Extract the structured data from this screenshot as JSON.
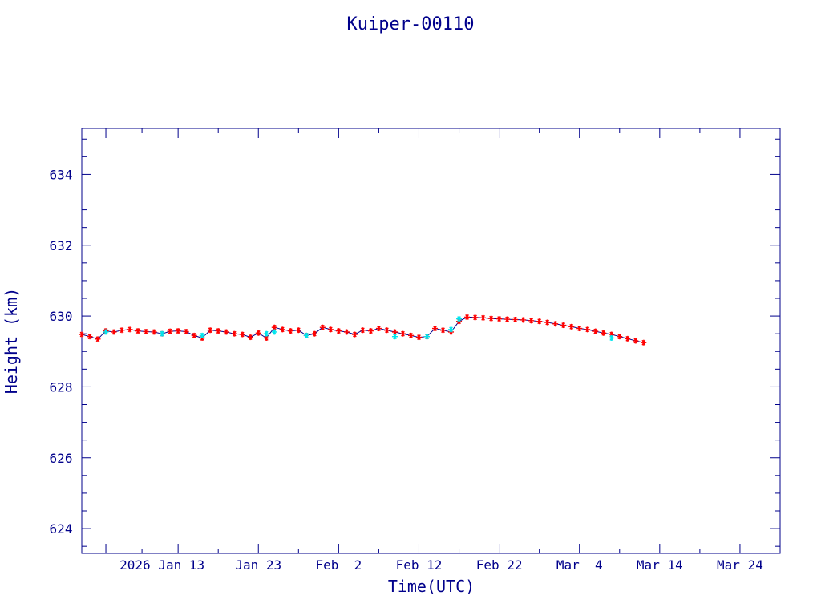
{
  "chart_data": {
    "type": "scatter",
    "title": "Kuiper-00110",
    "xlabel": "Time(UTC)",
    "ylabel": "Height (km)",
    "xlim": [
      "2026-01-01",
      "2026-03-29"
    ],
    "ylim": [
      623.3,
      635.3
    ],
    "x_ticks": [
      "2026-01-04",
      "2026-01-13",
      "2026-01-23",
      "2026-02-02",
      "2026-02-12",
      "2026-02-22",
      "2026-03-04",
      "2026-03-14",
      "2026-03-24"
    ],
    "x_tick_labels": [
      "2026 Jan 13",
      "Jan 23",
      "Feb  2",
      "Feb 12",
      "Feb 22",
      "Mar  4",
      "Mar 14",
      "Mar 24"
    ],
    "x_tick_label_dates": [
      "2026-01-13",
      "2026-01-23",
      "2026-02-02",
      "2026-02-12",
      "2026-02-22",
      "2026-03-04",
      "2026-03-14",
      "2026-03-24"
    ],
    "y_ticks": [
      624,
      626,
      628,
      630,
      632,
      634
    ],
    "y_tick_labels": [
      "624",
      "626",
      "628",
      "630",
      "632",
      "634"
    ],
    "grid": false,
    "legend": "none",
    "colors": {
      "axis": "#00008b",
      "line": "#00008b",
      "marker_primary": "#ff0000",
      "marker_secondary": "#00e5ee"
    },
    "series": [
      {
        "marker": "star",
        "color": "#ff0000",
        "x": [
          "2026-01-01",
          "2026-01-02",
          "2026-01-03",
          "2026-01-04",
          "2026-01-05",
          "2026-01-06",
          "2026-01-07",
          "2026-01-08",
          "2026-01-09",
          "2026-01-10",
          "2026-01-11",
          "2026-01-12",
          "2026-01-13",
          "2026-01-14",
          "2026-01-15",
          "2026-01-16",
          "2026-01-17",
          "2026-01-18",
          "2026-01-19",
          "2026-01-20",
          "2026-01-21",
          "2026-01-22",
          "2026-01-23",
          "2026-01-24",
          "2026-01-25",
          "2026-01-26",
          "2026-01-27",
          "2026-01-28",
          "2026-01-29",
          "2026-01-30",
          "2026-01-31",
          "2026-02-01",
          "2026-02-02",
          "2026-02-03",
          "2026-02-04",
          "2026-02-05",
          "2026-02-06",
          "2026-02-07",
          "2026-02-08",
          "2026-02-09",
          "2026-02-10",
          "2026-02-11",
          "2026-02-12",
          "2026-02-13",
          "2026-02-14",
          "2026-02-15",
          "2026-02-16",
          "2026-02-17",
          "2026-02-18",
          "2026-02-19",
          "2026-02-20",
          "2026-02-21",
          "2026-02-22",
          "2026-02-23",
          "2026-02-24",
          "2026-02-25",
          "2026-02-26",
          "2026-02-27",
          "2026-02-28",
          "2026-03-01",
          "2026-03-02",
          "2026-03-03",
          "2026-03-04",
          "2026-03-05",
          "2026-03-06",
          "2026-03-07",
          "2026-03-08",
          "2026-03-09",
          "2026-03-10",
          "2026-03-11",
          "2026-03-12"
        ],
        "y": [
          629.48,
          629.42,
          629.35,
          629.58,
          629.55,
          629.6,
          629.62,
          629.58,
          629.56,
          629.55,
          629.5,
          629.57,
          629.58,
          629.56,
          629.45,
          629.38,
          629.6,
          629.58,
          629.55,
          629.5,
          629.48,
          629.4,
          629.52,
          629.38,
          629.68,
          629.62,
          629.58,
          629.6,
          629.45,
          629.5,
          629.68,
          629.62,
          629.58,
          629.55,
          629.48,
          629.6,
          629.58,
          629.65,
          629.6,
          629.55,
          629.5,
          629.45,
          629.4,
          629.42,
          629.65,
          629.6,
          629.55,
          629.85,
          629.97,
          629.96,
          629.95,
          629.93,
          629.92,
          629.91,
          629.9,
          629.89,
          629.87,
          629.85,
          629.82,
          629.78,
          629.74,
          629.7,
          629.65,
          629.62,
          629.57,
          629.52,
          629.48,
          629.42,
          629.36,
          629.3,
          629.25
        ]
      },
      {
        "marker": "star",
        "color": "#00e5ee",
        "x": [
          "2026-01-04",
          "2026-01-11",
          "2026-01-16",
          "2026-01-24",
          "2026-01-25",
          "2026-01-29",
          "2026-02-09",
          "2026-02-13",
          "2026-02-16",
          "2026-02-17",
          "2026-03-08"
        ],
        "y": [
          629.55,
          629.5,
          629.45,
          629.5,
          629.55,
          629.45,
          629.42,
          629.42,
          629.62,
          629.92,
          629.38
        ]
      }
    ]
  }
}
